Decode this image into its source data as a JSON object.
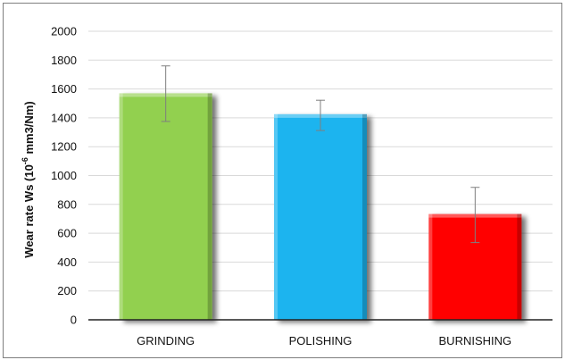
{
  "chart_data": {
    "type": "bar",
    "categories": [
      "GRINDING",
      "POLISHING",
      "BURNISHING"
    ],
    "values": [
      1570,
      1425,
      733
    ],
    "error_bars": [
      [
        1375,
        1760
      ],
      [
        1312,
        1522
      ],
      [
        535,
        918
      ]
    ],
    "colors": [
      "#92d050",
      "#1fb4ef",
      "#ff0000"
    ],
    "ylabel": {
      "prefix": "Wear rate  Ws (10",
      "sup": "-6",
      "suffix": " mm3/Nm)"
    },
    "ylim": [
      0,
      2000
    ],
    "yticks": [
      "0",
      "200",
      "400",
      "600",
      "800",
      "1000",
      "1200",
      "1400",
      "1600",
      "1800",
      "2000"
    ],
    "grid": true,
    "legend": "none"
  }
}
